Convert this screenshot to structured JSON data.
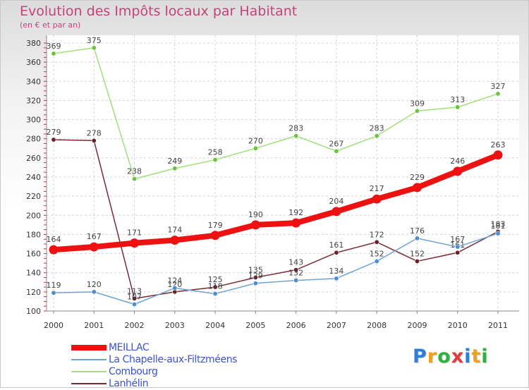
{
  "chart_data": {
    "type": "line",
    "title": "Evolution des Impôts locaux par Habitant",
    "subtitle": "(en € et par an)",
    "xlabel": "",
    "ylabel": "",
    "ylim": [
      100,
      380
    ],
    "yticks": [
      100,
      120,
      140,
      160,
      180,
      200,
      220,
      240,
      260,
      280,
      300,
      320,
      340,
      360,
      380
    ],
    "categories": [
      "2000",
      "2001",
      "2002",
      "2003",
      "2004",
      "2005",
      "2006",
      "2007",
      "2008",
      "2009",
      "2010",
      "2011"
    ],
    "grid": true,
    "series": [
      {
        "name": "Combourg",
        "color": "#9ee07a",
        "marker": "#6cc23e",
        "values": [
          369,
          375,
          238,
          249,
          258,
          270,
          283,
          267,
          283,
          309,
          313,
          327
        ]
      },
      {
        "name": "Lanhélin",
        "color": "#7a2a36",
        "marker": "#6a1f2a",
        "values": [
          279,
          278,
          113,
          120,
          125,
          135,
          143,
          161,
          172,
          152,
          161,
          183
        ]
      },
      {
        "name": "La Chapelle-aux-Filtzméens",
        "color": "#6fa3d4",
        "marker": "#4d8cd0",
        "values": [
          119,
          120,
          107,
          124,
          118,
          129,
          132,
          134,
          152,
          176,
          167,
          181
        ]
      },
      {
        "name": "MEILLAC",
        "color": "#ee1111",
        "marker": "#ee1111",
        "values": [
          164,
          167,
          171,
          174,
          179,
          190,
          192,
          204,
          217,
          229,
          246,
          263
        ]
      }
    ],
    "legend": [
      {
        "name": "MEILLAC",
        "color": "#ee1111",
        "thickness": 8
      },
      {
        "name": "La Chapelle-aux-Filtzméens",
        "color": "#6fa3d4",
        "thickness": 2
      },
      {
        "name": "Combourg",
        "color": "#9ee07a",
        "thickness": 2
      },
      {
        "name": "Lanhélin",
        "color": "#7a2a36",
        "thickness": 2
      }
    ],
    "legend_position": "bottom-left"
  },
  "brand": {
    "letters": [
      "P",
      "r",
      "o",
      "x",
      "i",
      "t",
      "i"
    ],
    "colors": [
      "#2d7fd6",
      "#f0a020",
      "#30b040",
      "#e03b3b",
      "#2d7fd6",
      "#f0a020",
      "#30b040"
    ]
  }
}
